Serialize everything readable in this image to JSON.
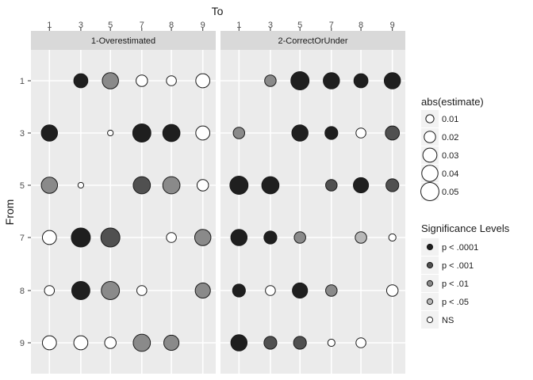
{
  "chart_data": {
    "type": "scatter",
    "x_axis_title": "To",
    "y_axis_title": "From",
    "x_categories": [
      "1",
      "3",
      "5",
      "7",
      "8",
      "9"
    ],
    "y_categories": [
      "1",
      "3",
      "5",
      "7",
      "8",
      "9"
    ],
    "panels": [
      {
        "strip_label": "1-Overestimated",
        "points": [
          {
            "from": "1",
            "to": "3",
            "size": 0.03,
            "sig": "p < .0001"
          },
          {
            "from": "1",
            "to": "5",
            "size": 0.04,
            "sig": "p < .01"
          },
          {
            "from": "1",
            "to": "7",
            "size": 0.02,
            "sig": "NS"
          },
          {
            "from": "1",
            "to": "8",
            "size": 0.015,
            "sig": "NS"
          },
          {
            "from": "1",
            "to": "9",
            "size": 0.03,
            "sig": "NS"
          },
          {
            "from": "3",
            "to": "1",
            "size": 0.04,
            "sig": "p < .0001"
          },
          {
            "from": "3",
            "to": "5",
            "size": 0.005,
            "sig": "NS"
          },
          {
            "from": "3",
            "to": "7",
            "size": 0.05,
            "sig": "p < .0001"
          },
          {
            "from": "3",
            "to": "8",
            "size": 0.045,
            "sig": "p < .0001"
          },
          {
            "from": "3",
            "to": "9",
            "size": 0.03,
            "sig": "NS"
          },
          {
            "from": "5",
            "to": "1",
            "size": 0.04,
            "sig": "p < .01"
          },
          {
            "from": "5",
            "to": "3",
            "size": 0.005,
            "sig": "NS"
          },
          {
            "from": "5",
            "to": "7",
            "size": 0.045,
            "sig": "p < .001"
          },
          {
            "from": "5",
            "to": "8",
            "size": 0.045,
            "sig": "p < .01"
          },
          {
            "from": "5",
            "to": "9",
            "size": 0.02,
            "sig": "NS"
          },
          {
            "from": "7",
            "to": "1",
            "size": 0.03,
            "sig": "NS"
          },
          {
            "from": "7",
            "to": "3",
            "size": 0.055,
            "sig": "p < .0001"
          },
          {
            "from": "7",
            "to": "5",
            "size": 0.055,
            "sig": "p < .001"
          },
          {
            "from": "7",
            "to": "8",
            "size": 0.015,
            "sig": "NS"
          },
          {
            "from": "7",
            "to": "9",
            "size": 0.04,
            "sig": "p < .01"
          },
          {
            "from": "8",
            "to": "1",
            "size": 0.015,
            "sig": "NS"
          },
          {
            "from": "8",
            "to": "3",
            "size": 0.05,
            "sig": "p < .0001"
          },
          {
            "from": "8",
            "to": "5",
            "size": 0.05,
            "sig": "p < .01"
          },
          {
            "from": "8",
            "to": "7",
            "size": 0.015,
            "sig": "NS"
          },
          {
            "from": "8",
            "to": "9",
            "size": 0.035,
            "sig": "p < .01"
          },
          {
            "from": "9",
            "to": "1",
            "size": 0.03,
            "sig": "NS"
          },
          {
            "from": "9",
            "to": "3",
            "size": 0.03,
            "sig": "NS"
          },
          {
            "from": "9",
            "to": "5",
            "size": 0.02,
            "sig": "NS"
          },
          {
            "from": "9",
            "to": "7",
            "size": 0.045,
            "sig": "p < .01"
          },
          {
            "from": "9",
            "to": "8",
            "size": 0.035,
            "sig": "p < .01"
          }
        ]
      },
      {
        "strip_label": "2-CorrectOrUnder",
        "points": [
          {
            "from": "1",
            "to": "3",
            "size": 0.02,
            "sig": "p < .01"
          },
          {
            "from": "1",
            "to": "5",
            "size": 0.05,
            "sig": "p < .0001"
          },
          {
            "from": "1",
            "to": "7",
            "size": 0.04,
            "sig": "p < .0001"
          },
          {
            "from": "1",
            "to": "8",
            "size": 0.03,
            "sig": "p < .0001"
          },
          {
            "from": "1",
            "to": "9",
            "size": 0.04,
            "sig": "p < .0001"
          },
          {
            "from": "3",
            "to": "1",
            "size": 0.02,
            "sig": "p < .01"
          },
          {
            "from": "3",
            "to": "5",
            "size": 0.04,
            "sig": "p < .0001"
          },
          {
            "from": "3",
            "to": "7",
            "size": 0.025,
            "sig": "p < .0001"
          },
          {
            "from": "3",
            "to": "8",
            "size": 0.015,
            "sig": "NS"
          },
          {
            "from": "3",
            "to": "9",
            "size": 0.03,
            "sig": "p < .001"
          },
          {
            "from": "5",
            "to": "1",
            "size": 0.05,
            "sig": "p < .0001"
          },
          {
            "from": "5",
            "to": "3",
            "size": 0.045,
            "sig": "p < .0001"
          },
          {
            "from": "5",
            "to": "7",
            "size": 0.02,
            "sig": "p < .001"
          },
          {
            "from": "5",
            "to": "8",
            "size": 0.035,
            "sig": "p < .0001"
          },
          {
            "from": "5",
            "to": "9",
            "size": 0.025,
            "sig": "p < .001"
          },
          {
            "from": "7",
            "to": "1",
            "size": 0.04,
            "sig": "p < .0001"
          },
          {
            "from": "7",
            "to": "3",
            "size": 0.025,
            "sig": "p < .0001"
          },
          {
            "from": "7",
            "to": "5",
            "size": 0.02,
            "sig": "p < .01"
          },
          {
            "from": "7",
            "to": "8",
            "size": 0.02,
            "sig": "p < .05"
          },
          {
            "from": "7",
            "to": "9",
            "size": 0.008,
            "sig": "NS"
          },
          {
            "from": "8",
            "to": "1",
            "size": 0.025,
            "sig": "p < .0001"
          },
          {
            "from": "8",
            "to": "3",
            "size": 0.015,
            "sig": "NS"
          },
          {
            "from": "8",
            "to": "5",
            "size": 0.035,
            "sig": "p < .0001"
          },
          {
            "from": "8",
            "to": "7",
            "size": 0.02,
            "sig": "p < .01"
          },
          {
            "from": "8",
            "to": "9",
            "size": 0.02,
            "sig": "NS"
          },
          {
            "from": "9",
            "to": "1",
            "size": 0.04,
            "sig": "p < .0001"
          },
          {
            "from": "9",
            "to": "3",
            "size": 0.025,
            "sig": "p < .001"
          },
          {
            "from": "9",
            "to": "5",
            "size": 0.025,
            "sig": "p < .001"
          },
          {
            "from": "9",
            "to": "7",
            "size": 0.008,
            "sig": "NS"
          },
          {
            "from": "9",
            "to": "8",
            "size": 0.015,
            "sig": "NS"
          }
        ]
      }
    ],
    "legend_size": {
      "title": "abs(estimate)",
      "breaks": [
        0.01,
        0.02,
        0.03,
        0.04,
        0.05
      ],
      "labels": [
        "0.01",
        "0.02",
        "0.03",
        "0.04",
        "0.05"
      ]
    },
    "legend_sig": {
      "title": "Significance Levels",
      "levels": [
        "p < .0001",
        "p < .001",
        "p < .01",
        "p < .05",
        "NS"
      ],
      "colors": [
        "#1f1f1f",
        "#505050",
        "#8a8a8a",
        "#b8b8b8",
        "#ffffff"
      ]
    },
    "colors": {
      "panel_bg": "#ebebeb",
      "strip_bg": "#d9d9d9",
      "gridline": "#ffffff",
      "point_stroke": "#1a1a1a"
    },
    "grid": true,
    "legend_position": "right"
  }
}
